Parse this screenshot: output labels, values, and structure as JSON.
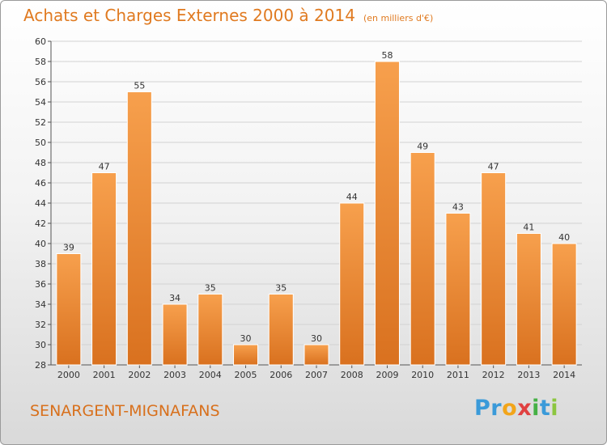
{
  "chart_data": {
    "type": "bar",
    "title": "Achats et Charges Externes 2000 à 2014",
    "subtitle": "(en milliers d'€)",
    "categories": [
      "2000",
      "2001",
      "2002",
      "2003",
      "2004",
      "2005",
      "2006",
      "2007",
      "2008",
      "2009",
      "2010",
      "2011",
      "2012",
      "2013",
      "2014"
    ],
    "values": [
      39,
      47,
      55,
      34,
      35,
      30,
      35,
      30,
      44,
      58,
      49,
      43,
      47,
      41,
      40
    ],
    "ylim": [
      28,
      60
    ],
    "yticks": [
      28,
      30,
      32,
      34,
      36,
      38,
      40,
      42,
      44,
      46,
      48,
      50,
      52,
      54,
      56,
      58,
      60
    ],
    "grid": true,
    "bar_color": "#f0892e"
  },
  "footer": {
    "town": "SENARGENT-MIGNAFANS",
    "logo_letters": [
      {
        "char": "P",
        "color": "#3a9ad9"
      },
      {
        "char": "r",
        "color": "#3a9ad9"
      },
      {
        "char": "o",
        "color": "#f2a51a"
      },
      {
        "char": "x",
        "color": "#e04040"
      },
      {
        "char": "i",
        "color": "#45b045"
      },
      {
        "char": "t",
        "color": "#3a9ad9"
      },
      {
        "char": "i",
        "color": "#8cc63f"
      }
    ]
  }
}
